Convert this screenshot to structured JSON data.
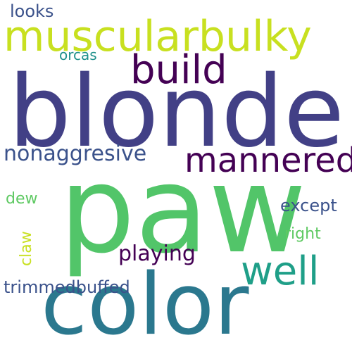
{
  "background": "#ffffff",
  "words": [
    {
      "key": "paw",
      "text": "paw",
      "color": "#52c569"
    },
    {
      "key": "blonde",
      "text": "blonde",
      "color": "#424086"
    },
    {
      "key": "color",
      "text": "color",
      "color": "#2b788e"
    },
    {
      "key": "muscularbulky",
      "text": "muscularbulky",
      "color": "#c8e020"
    },
    {
      "key": "build",
      "text": "build",
      "color": "#440154"
    },
    {
      "key": "well",
      "text": "well",
      "color": "#1f9f88"
    },
    {
      "key": "mannered",
      "text": "mannered",
      "color": "#440154"
    },
    {
      "key": "nonaggresive",
      "text": "nonaggresive",
      "color": "#3b528b"
    },
    {
      "key": "playing",
      "text": "playing",
      "color": "#440154"
    },
    {
      "key": "except",
      "text": "except",
      "color": "#3b528b"
    },
    {
      "key": "trimmedbuffed",
      "text": "trimmedbuffed",
      "color": "#3b528b"
    },
    {
      "key": "looks",
      "text": "looks",
      "color": "#3b528b"
    },
    {
      "key": "orcas",
      "text": "orcas",
      "color": "#21918c"
    },
    {
      "key": "dew",
      "text": "dew",
      "color": "#5ec962"
    },
    {
      "key": "right",
      "text": "right",
      "color": "#5ec962"
    },
    {
      "key": "claw",
      "text": "claw",
      "color": "#c8e020"
    }
  ]
}
